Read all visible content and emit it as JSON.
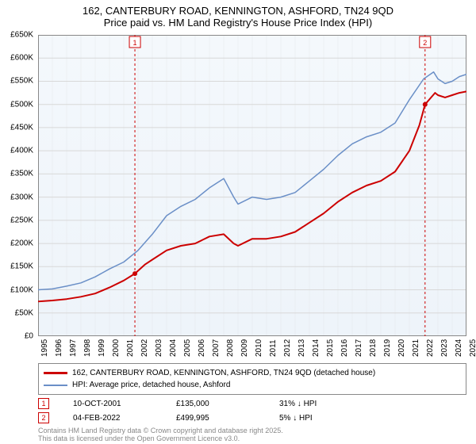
{
  "title": {
    "line1": "162, CANTERBURY ROAD, KENNINGTON, ASHFORD, TN24 9QD",
    "line2": "Price paid vs. HM Land Registry's House Price Index (HPI)"
  },
  "chart": {
    "type": "line",
    "background_color": "#ffffff",
    "plot_bg_gradient": [
      "#f4f8fc",
      "#eef4fa"
    ],
    "grid_color": "#d8d8d8",
    "axis_color": "#888888",
    "y": {
      "min": 0,
      "max": 650000,
      "ticks": [
        0,
        50000,
        100000,
        150000,
        200000,
        250000,
        300000,
        350000,
        400000,
        450000,
        500000,
        550000,
        600000,
        650000
      ],
      "tick_labels": [
        "£0",
        "£50K",
        "£100K",
        "£150K",
        "£200K",
        "£250K",
        "£300K",
        "£350K",
        "£400K",
        "£450K",
        "£500K",
        "£550K",
        "£600K",
        "£650K"
      ],
      "label_fontsize": 10
    },
    "x": {
      "min": 1995,
      "max": 2025,
      "ticks": [
        1995,
        1996,
        1997,
        1998,
        1999,
        2000,
        2001,
        2002,
        2003,
        2004,
        2005,
        2006,
        2007,
        2008,
        2009,
        2010,
        2011,
        2012,
        2013,
        2014,
        2015,
        2016,
        2017,
        2018,
        2019,
        2020,
        2021,
        2022,
        2023,
        2024,
        2025
      ],
      "label_fontsize": 10
    },
    "series": [
      {
        "name": "price_paid",
        "label": "162, CANTERBURY ROAD, KENNINGTON, ASHFORD, TN24 9QD (detached house)",
        "color": "#cc0000",
        "line_width": 2,
        "data": [
          [
            1995.0,
            75000
          ],
          [
            1996.0,
            77000
          ],
          [
            1997.0,
            80000
          ],
          [
            1998.0,
            85000
          ],
          [
            1999.0,
            92000
          ],
          [
            2000.0,
            105000
          ],
          [
            2001.0,
            120000
          ],
          [
            2001.78,
            135000
          ],
          [
            2002.5,
            155000
          ],
          [
            2003.0,
            165000
          ],
          [
            2004.0,
            185000
          ],
          [
            2005.0,
            195000
          ],
          [
            2006.0,
            200000
          ],
          [
            2007.0,
            215000
          ],
          [
            2008.0,
            220000
          ],
          [
            2008.7,
            200000
          ],
          [
            2009.0,
            195000
          ],
          [
            2010.0,
            210000
          ],
          [
            2011.0,
            210000
          ],
          [
            2012.0,
            215000
          ],
          [
            2013.0,
            225000
          ],
          [
            2014.0,
            245000
          ],
          [
            2015.0,
            265000
          ],
          [
            2016.0,
            290000
          ],
          [
            2017.0,
            310000
          ],
          [
            2018.0,
            325000
          ],
          [
            2019.0,
            335000
          ],
          [
            2020.0,
            355000
          ],
          [
            2021.0,
            400000
          ],
          [
            2021.7,
            455000
          ],
          [
            2022.1,
            499995
          ],
          [
            2022.8,
            525000
          ],
          [
            2023.0,
            520000
          ],
          [
            2023.5,
            515000
          ],
          [
            2024.0,
            520000
          ],
          [
            2024.5,
            525000
          ],
          [
            2025.0,
            528000
          ]
        ]
      },
      {
        "name": "hpi",
        "label": "HPI: Average price, detached house, Ashford",
        "color": "#6a8fc7",
        "line_width": 1.5,
        "data": [
          [
            1995.0,
            100000
          ],
          [
            1996.0,
            102000
          ],
          [
            1997.0,
            108000
          ],
          [
            1998.0,
            115000
          ],
          [
            1999.0,
            128000
          ],
          [
            2000.0,
            145000
          ],
          [
            2001.0,
            160000
          ],
          [
            2002.0,
            185000
          ],
          [
            2003.0,
            220000
          ],
          [
            2004.0,
            260000
          ],
          [
            2005.0,
            280000
          ],
          [
            2006.0,
            295000
          ],
          [
            2007.0,
            320000
          ],
          [
            2008.0,
            340000
          ],
          [
            2008.7,
            300000
          ],
          [
            2009.0,
            285000
          ],
          [
            2010.0,
            300000
          ],
          [
            2011.0,
            295000
          ],
          [
            2012.0,
            300000
          ],
          [
            2013.0,
            310000
          ],
          [
            2014.0,
            335000
          ],
          [
            2015.0,
            360000
          ],
          [
            2016.0,
            390000
          ],
          [
            2017.0,
            415000
          ],
          [
            2018.0,
            430000
          ],
          [
            2019.0,
            440000
          ],
          [
            2020.0,
            460000
          ],
          [
            2021.0,
            510000
          ],
          [
            2022.0,
            555000
          ],
          [
            2022.7,
            570000
          ],
          [
            2023.0,
            555000
          ],
          [
            2023.5,
            545000
          ],
          [
            2024.0,
            550000
          ],
          [
            2024.5,
            560000
          ],
          [
            2025.0,
            565000
          ]
        ]
      }
    ],
    "markers": [
      {
        "id": "1",
        "x": 2001.78,
        "y_top": 0,
        "date": "10-OCT-2001",
        "price": "£135,000",
        "pct": "31% ↓ HPI"
      },
      {
        "id": "2",
        "x": 2022.1,
        "y_top": 0,
        "date": "04-FEB-2022",
        "price": "£499,995",
        "pct": "5% ↓ HPI"
      }
    ]
  },
  "legend": {
    "border_color": "#888888",
    "fontsize": 10
  },
  "footer": {
    "line1": "Contains HM Land Registry data © Crown copyright and database right 2025.",
    "line2": "This data is licensed under the Open Government Licence v3.0."
  }
}
